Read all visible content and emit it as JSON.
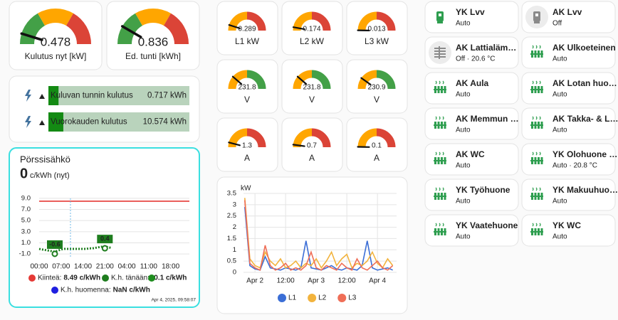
{
  "main_gauges": [
    {
      "value": 0.478,
      "label": "Kulutus nyt [kW]",
      "lim": [
        0,
        5
      ],
      "colors": [
        "#43a047",
        "#ffa600",
        "#db4437"
      ]
    },
    {
      "value": 0.836,
      "label": "Ed. tunti [kWh]",
      "lim": [
        0,
        5
      ],
      "colors": [
        "#43a047",
        "#ffa600",
        "#db4437"
      ]
    }
  ],
  "energy_bars": [
    {
      "name": "Kuluvan tunnin kulutus",
      "value": 0.717,
      "value_label": "0.717 kWh",
      "lim": [
        0,
        10
      ]
    },
    {
      "name": "Vuorokauden kulutus",
      "value": 10.574,
      "value_label": "10.574 kWh",
      "lim": [
        0,
        100
      ]
    }
  ],
  "phase_gauges": [
    {
      "value": 0.289,
      "label": "L1 kW",
      "lim": [
        0,
        3
      ],
      "colors": [
        "#ffa600",
        "#db4437"
      ]
    },
    {
      "value": 0.174,
      "label": "L2 kW",
      "lim": [
        0,
        3
      ],
      "colors": [
        "#ffa600",
        "#db4437"
      ]
    },
    {
      "value": 0.013,
      "label": "L3 kW",
      "lim": [
        0,
        3
      ],
      "colors": [
        "#ffa600",
        "#db4437"
      ]
    },
    {
      "value": 231.8,
      "label": "V",
      "lim": [
        225,
        255
      ],
      "colors": [
        "#ffa600",
        "#43a047"
      ]
    },
    {
      "value": 231.8,
      "label": "V",
      "lim": [
        225,
        255
      ],
      "colors": [
        "#ffa600",
        "#43a047"
      ]
    },
    {
      "value": 230.9,
      "label": "V",
      "lim": [
        225,
        255
      ],
      "colors": [
        "#ffa600",
        "#43a047"
      ]
    },
    {
      "value": 1.3,
      "label": "A",
      "lim": [
        0,
        16
      ],
      "colors": [
        "#ffa600",
        "#db4437"
      ]
    },
    {
      "value": 0.7,
      "label": "A",
      "lim": [
        0,
        16
      ],
      "colors": [
        "#ffa600",
        "#db4437"
      ]
    },
    {
      "value": 0.1,
      "label": "A",
      "lim": [
        0,
        16
      ],
      "colors": [
        "#ffa600",
        "#db4437"
      ]
    }
  ],
  "chart_data": [
    {
      "type": "line",
      "title": "Pörssisähkö",
      "current": 0,
      "current_unit": "c/kWh (nyt)",
      "xlim": [
        0,
        48
      ],
      "xticks": [
        {
          "value": 0,
          "label": "00:00"
        },
        {
          "value": 7,
          "label": "07:00"
        },
        {
          "value": 14,
          "label": "14:00"
        },
        {
          "value": 21,
          "label": "21:00"
        },
        {
          "value": 28,
          "label": "04:00"
        },
        {
          "value": 35,
          "label": "11:00"
        },
        {
          "value": 42,
          "label": "18:00"
        }
      ],
      "ylim": [
        -1.5,
        9.5
      ],
      "yticks": [
        {
          "value": 9,
          "label": "9.0"
        },
        {
          "value": 7,
          "label": "7.0"
        },
        {
          "value": 5,
          "label": "5.0"
        },
        {
          "value": 3,
          "label": "3.0"
        },
        {
          "value": 1,
          "label": "1.0"
        },
        {
          "value": -1,
          "label": "-1.0"
        }
      ],
      "grid": true,
      "now": 10,
      "series": [
        {
          "name": "Kiinteä:",
          "color": "#e53935",
          "summary": "8.49 c/kWh",
          "x": [
            0,
            48
          ],
          "values": [
            8.49,
            8.49
          ]
        },
        {
          "name": "K.h. tänään:",
          "color": "#1e7d1e",
          "summary": "-0.1 c/kWh",
          "dashed": true,
          "x": [
            0,
            1,
            2,
            3,
            4,
            5,
            6,
            7,
            8,
            9,
            10,
            11,
            12,
            13,
            14,
            15,
            16,
            17,
            18,
            19,
            20,
            21,
            22,
            23
          ],
          "values": [
            -0.1,
            -0.2,
            -0.3,
            -0.4,
            -0.5,
            -0.6,
            -0.4,
            -0.2,
            -0.1,
            -0.1,
            -0.1,
            -0.1,
            -0.1,
            -0.1,
            -0.1,
            -0.1,
            0.0,
            0.0,
            0.1,
            0.2,
            0.3,
            0.4,
            0.2,
            0.1
          ]
        },
        {
          "name": "K.h. huomenna:",
          "color": "#1f1fe0",
          "summary": "NaN c/kWh",
          "x": [],
          "values": []
        }
      ],
      "annotations": [
        {
          "x": 5,
          "value": -0.6
        },
        {
          "x": 21,
          "value": 0.4
        }
      ],
      "timestamp": "Apr 4, 2025, 09:58:07"
    },
    {
      "type": "line",
      "y_label": "kW",
      "xlim": [
        -4.5,
        55.5
      ],
      "xticks": [
        {
          "value": 0,
          "label": "Apr 2"
        },
        {
          "value": 12,
          "label": "12:00"
        },
        {
          "value": 24,
          "label": "Apr 3"
        },
        {
          "value": 36,
          "label": "12:00"
        },
        {
          "value": 48,
          "label": "Apr 4"
        }
      ],
      "ylim": [
        0,
        3.5
      ],
      "yticks": [
        0,
        0.5,
        1,
        1.5,
        2,
        2.5,
        3,
        3.5
      ],
      "grid": true,
      "legend": "bottom",
      "x": [
        -4,
        -2,
        0,
        2,
        4,
        6,
        8,
        10,
        12,
        14,
        16,
        18,
        20,
        22,
        24,
        26,
        28,
        30,
        32,
        34,
        36,
        38,
        40,
        42,
        44,
        46,
        48,
        50,
        52,
        54
      ],
      "series": [
        {
          "name": "L1",
          "color": "#3b6ed6",
          "values": [
            2.9,
            0.3,
            0.15,
            0.1,
            0.7,
            0.2,
            0.15,
            0.1,
            0.2,
            0.15,
            0.1,
            0.2,
            1.4,
            0.2,
            0.15,
            0.1,
            0.2,
            0.3,
            0.15,
            0.1,
            0.2,
            0.15,
            0.1,
            0.3,
            1.4,
            0.2,
            0.1,
            0.15,
            0.2,
            0.1
          ]
        },
        {
          "name": "L2",
          "color": "#f2b33d",
          "values": [
            3.3,
            0.6,
            0.3,
            0.2,
            0.9,
            0.5,
            0.3,
            0.6,
            0.2,
            0.3,
            0.5,
            0.2,
            0.4,
            0.3,
            0.6,
            0.2,
            0.5,
            0.9,
            0.3,
            0.6,
            0.8,
            0.2,
            0.4,
            0.3,
            0.5,
            0.9,
            0.4,
            0.2,
            0.6,
            0.3
          ]
        },
        {
          "name": "L3",
          "color": "#ef6e57",
          "values": [
            3.2,
            0.4,
            0.2,
            0.1,
            1.2,
            0.3,
            0.1,
            0.2,
            0.4,
            0.1,
            0.2,
            0.1,
            0.3,
            0.9,
            0.2,
            0.1,
            0.3,
            0.2,
            0.1,
            0.4,
            0.2,
            0.1,
            0.6,
            0.2,
            0.1,
            0.3,
            0.5,
            0.2,
            0.1,
            0.3
          ]
        }
      ]
    }
  ],
  "tiles": [
    {
      "name": "YK Lvv",
      "state": "Auto",
      "icon": "water-heater",
      "color": "#2e9e4f"
    },
    {
      "name": "AK Lvv",
      "state": "Off",
      "icon": "water-heater",
      "color": "#8a8a8a"
    },
    {
      "name": "AK Lattialäm…",
      "state": "Off · 20.6 °C",
      "icon": "floor",
      "color": "#8a8a8a"
    },
    {
      "name": "AK Ulkoeteinen",
      "state": "Auto",
      "icon": "radiator",
      "color": "#2e9e4f"
    },
    {
      "name": "AK Aula",
      "state": "Auto",
      "icon": "radiator",
      "color": "#2e9e4f"
    },
    {
      "name": "AK Lotan huo…",
      "state": "Auto",
      "icon": "radiator",
      "color": "#2e9e4f"
    },
    {
      "name": "AK Memmun …",
      "state": "Auto",
      "icon": "radiator",
      "color": "#2e9e4f"
    },
    {
      "name": "AK Takka- & L…",
      "state": "Auto",
      "icon": "radiator",
      "color": "#2e9e4f"
    },
    {
      "name": "AK WC",
      "state": "Auto",
      "icon": "radiator",
      "color": "#2e9e4f"
    },
    {
      "name": "YK Olohuone …",
      "state": "Auto · 20.8 °C",
      "icon": "radiator",
      "color": "#2e9e4f"
    },
    {
      "name": "YK Työhuone",
      "state": "Auto",
      "icon": "radiator",
      "color": "#2e9e4f"
    },
    {
      "name": "YK Makuuhuo…",
      "state": "Auto",
      "icon": "radiator",
      "color": "#2e9e4f"
    },
    {
      "name": "YK Vaatehuone",
      "state": "Auto",
      "icon": "radiator",
      "color": "#2e9e4f"
    },
    {
      "name": "YK WC",
      "state": "Auto",
      "icon": "radiator",
      "color": "#2e9e4f"
    }
  ]
}
